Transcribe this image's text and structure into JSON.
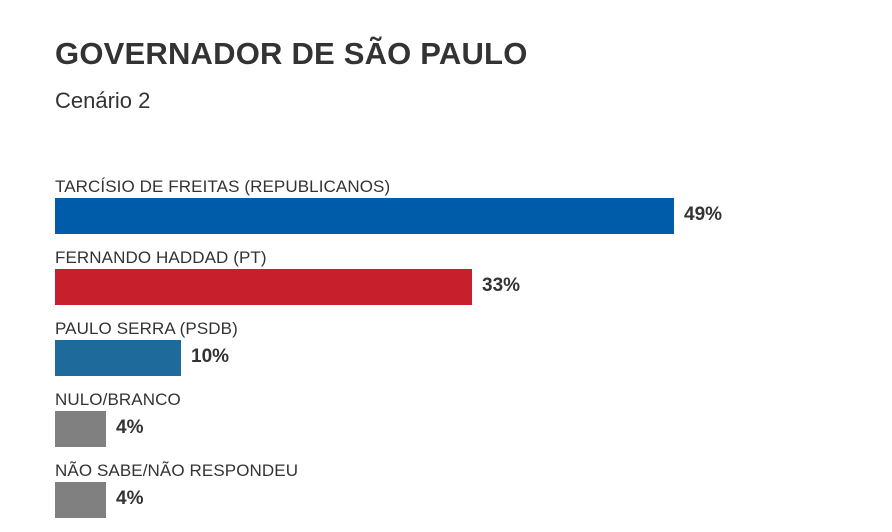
{
  "chart_data": {
    "type": "bar",
    "orientation": "horizontal",
    "title": "GOVERNADOR DE SÃO PAULO",
    "subtitle": "Cenário 2",
    "unit": "%",
    "xlim": [
      0,
      49
    ],
    "grid": false,
    "legend": "none",
    "categories": [
      "TARCÍSIO DE FREITAS (REPUBLICANOS)",
      "FERNANDO HADDAD (PT)",
      "PAULO SERRA (PSDB)",
      "NULO/BRANCO",
      "NÃO SABE/NÃO RESPONDEU"
    ],
    "values": [
      49,
      33,
      10,
      4,
      4
    ],
    "value_labels": [
      "49%",
      "33%",
      "10%",
      "4%",
      "4%"
    ],
    "colors": [
      "#005ca9",
      "#c81f2c",
      "#1e6a9a",
      "#808080",
      "#808080"
    ]
  }
}
